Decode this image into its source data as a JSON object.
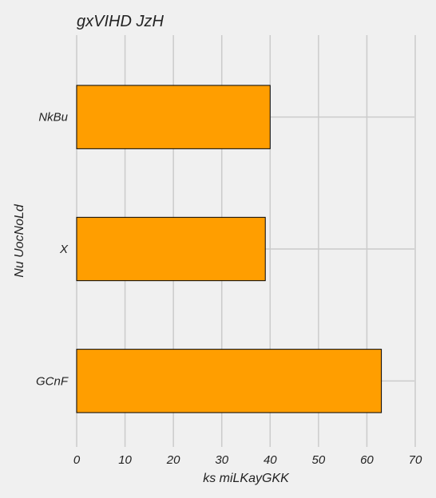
{
  "chart_data": {
    "type": "bar",
    "orientation": "horizontal",
    "title": "gxVIHD JzH",
    "xlabel": "ks  miLKayGKK",
    "ylabel": "Nu UocNoLd",
    "categories": [
      "NkBu",
      "X",
      "GCnF"
    ],
    "values": [
      40,
      39,
      63
    ],
    "xlim": [
      0,
      70
    ],
    "xticks": [
      0,
      10,
      20,
      30,
      40,
      50,
      60,
      70
    ],
    "grid": true,
    "bar_color": "#ff9e00",
    "bar_edge_color": "#000000",
    "background_color": "#f0f0f0",
    "grid_color": "#cbcbcb"
  }
}
